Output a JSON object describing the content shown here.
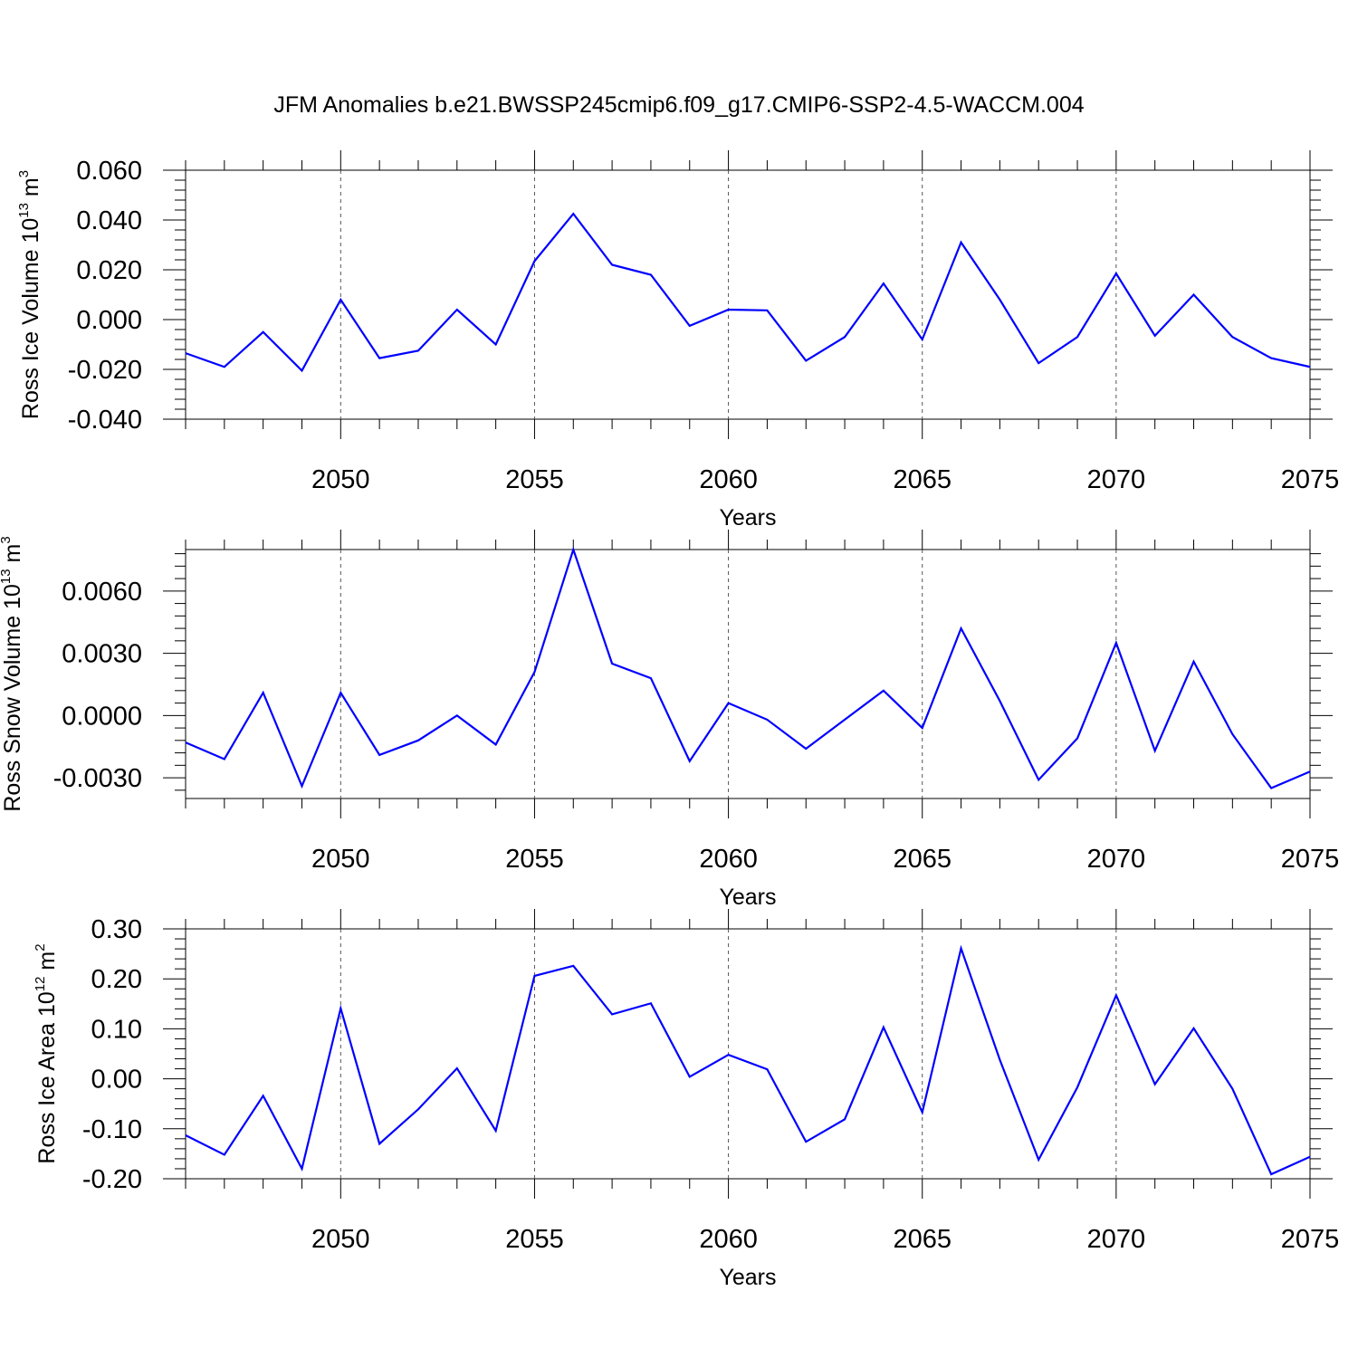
{
  "figure_title": "JFM Anomalies b.e21.BWSSP245cmip6.f09_g17.CMIP6-SSP2-4.5-WACCM.004",
  "series_color": "#0000ff",
  "chart_data": [
    {
      "type": "line",
      "title": "",
      "xlabel": "Years",
      "ylabel": {
        "prefix": "Ross Ice Volume 10",
        "exp": "13",
        "unit": " m",
        "unit_exp": "3"
      },
      "xlim": [
        2046,
        2075
      ],
      "ylim": [
        -0.04,
        0.06
      ],
      "xticks": [
        2050,
        2055,
        2060,
        2065,
        2070,
        2075
      ],
      "xtick_labels": [
        "2050",
        "2055",
        "2060",
        "2065",
        "2070",
        "2075"
      ],
      "yticks": [
        -0.04,
        -0.02,
        0.0,
        0.02,
        0.04,
        0.06
      ],
      "ytick_labels": [
        "-0.040",
        "-0.020",
        "0.000",
        "0.020",
        "0.040",
        "0.060"
      ],
      "grid": "vertical dashed at major x ticks",
      "x": [
        2046,
        2047,
        2048,
        2049,
        2050,
        2051,
        2052,
        2053,
        2054,
        2055,
        2056,
        2057,
        2058,
        2059,
        2060,
        2061,
        2062,
        2063,
        2064,
        2065,
        2066,
        2067,
        2068,
        2069,
        2070,
        2071,
        2072,
        2073,
        2074,
        2075
      ],
      "series": [
        {
          "name": "Ross Ice Volume anomaly",
          "values": [
            -0.0135,
            -0.019,
            -0.005,
            -0.0205,
            0.008,
            -0.0155,
            -0.0125,
            0.004,
            -0.01,
            0.0235,
            0.0425,
            0.022,
            0.018,
            -0.0025,
            0.004,
            0.0037,
            -0.0165,
            -0.007,
            0.0145,
            -0.008,
            0.031,
            0.008,
            -0.0175,
            -0.007,
            0.0185,
            -0.0065,
            0.01,
            -0.007,
            -0.0155,
            -0.019
          ]
        }
      ]
    },
    {
      "type": "line",
      "title": "",
      "xlabel": "Years",
      "ylabel": {
        "prefix": "Ross Snow Volume 10",
        "exp": "13",
        "unit": " m",
        "unit_exp": "3"
      },
      "xlim": [
        2046,
        2075
      ],
      "ylim": [
        -0.004,
        0.008
      ],
      "xticks": [
        2050,
        2055,
        2060,
        2065,
        2070,
        2075
      ],
      "xtick_labels": [
        "2050",
        "2055",
        "2060",
        "2065",
        "2070",
        "2075"
      ],
      "yticks": [
        -0.003,
        0.0,
        0.003,
        0.006
      ],
      "ytick_labels": [
        "-0.0030",
        "0.0000",
        "0.0030",
        "0.0060"
      ],
      "grid": "vertical dashed at major x ticks",
      "x": [
        2046,
        2047,
        2048,
        2049,
        2050,
        2051,
        2052,
        2053,
        2054,
        2055,
        2056,
        2057,
        2058,
        2059,
        2060,
        2061,
        2062,
        2063,
        2064,
        2065,
        2066,
        2067,
        2068,
        2069,
        2070,
        2071,
        2072,
        2073,
        2074,
        2075
      ],
      "series": [
        {
          "name": "Ross Snow Volume anomaly",
          "values": [
            -0.0013,
            -0.0021,
            0.0011,
            -0.0034,
            0.0011,
            -0.0019,
            -0.0012,
            0.0,
            -0.0014,
            0.0021,
            0.008,
            0.0025,
            0.0018,
            -0.0022,
            0.0006,
            -0.0002,
            -0.0016,
            -0.0002,
            0.0012,
            -0.0006,
            0.0042,
            0.0007,
            -0.0031,
            -0.0011,
            0.0035,
            -0.0017,
            0.0026,
            -0.0009,
            -0.0035,
            -0.0027
          ]
        }
      ]
    },
    {
      "type": "line",
      "title": "",
      "xlabel": "Years",
      "ylabel": {
        "prefix": "Ross Ice Area 10",
        "exp": "12",
        "unit": " m",
        "unit_exp": "2"
      },
      "xlim": [
        2046,
        2075
      ],
      "ylim": [
        -0.2,
        0.3
      ],
      "xticks": [
        2050,
        2055,
        2060,
        2065,
        2070,
        2075
      ],
      "xtick_labels": [
        "2050",
        "2055",
        "2060",
        "2065",
        "2070",
        "2075"
      ],
      "yticks": [
        -0.2,
        -0.1,
        0.0,
        0.1,
        0.2,
        0.3
      ],
      "ytick_labels": [
        "-0.20",
        "-0.10",
        "0.00",
        "0.10",
        "0.20",
        "0.30"
      ],
      "grid": "vertical dashed at major x ticks",
      "x": [
        2046,
        2047,
        2048,
        2049,
        2050,
        2051,
        2052,
        2053,
        2054,
        2055,
        2056,
        2057,
        2058,
        2059,
        2060,
        2061,
        2062,
        2063,
        2064,
        2065,
        2066,
        2067,
        2068,
        2069,
        2070,
        2071,
        2072,
        2073,
        2074,
        2075
      ],
      "series": [
        {
          "name": "Ross Ice Area anomaly",
          "values": [
            -0.113,
            -0.152,
            -0.034,
            -0.18,
            0.141,
            -0.13,
            -0.061,
            0.021,
            -0.104,
            0.206,
            0.226,
            0.129,
            0.151,
            0.004,
            0.048,
            0.019,
            -0.126,
            -0.081,
            0.103,
            -0.067,
            0.261,
            0.038,
            -0.162,
            -0.017,
            0.167,
            -0.011,
            0.101,
            -0.02,
            -0.191,
            -0.156
          ]
        }
      ]
    }
  ]
}
